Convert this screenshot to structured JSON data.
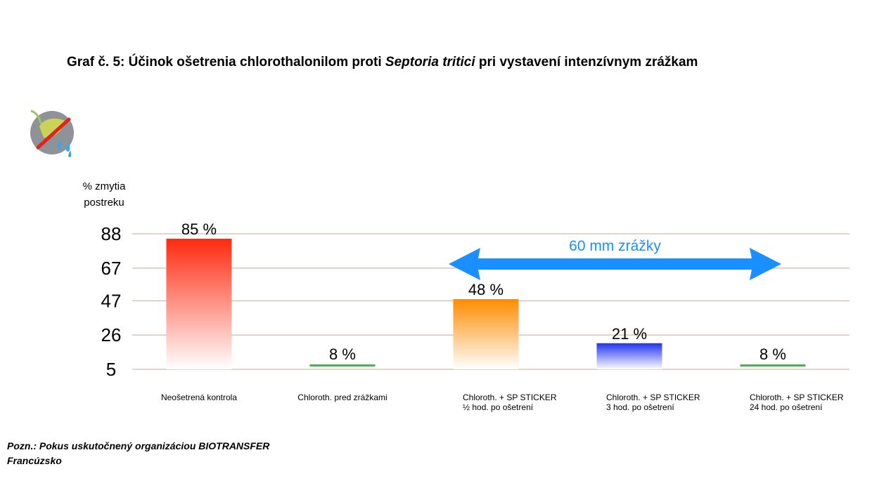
{
  "title": {
    "part1": "Graf č. 5: Účinok ošetrenia chlorothalonilom proti ",
    "italic": "Septoria tritici",
    "part2": " pri vystavení intenzívnym zrážkam"
  },
  "logo_icon": "rain-washing-leaf-icon",
  "note": {
    "line1": "Pozn.: Pokus uskutočnený organizáciou BIOTRANSFER",
    "line2": "Francúzsko"
  },
  "chart_data": {
    "type": "bar",
    "ylabel": [
      "% zmytia",
      "postreku"
    ],
    "yticks": [
      88,
      67,
      47,
      26,
      5
    ],
    "ylim": [
      5,
      88
    ],
    "grid": true,
    "categories": [
      [
        "Neošetrená kontrola"
      ],
      [
        "Chloroth. pred zrážkami"
      ],
      [
        "Chloroth. + SP STICKER",
        "½ hod. po ošetrení"
      ],
      [
        "Chloroth. + SP STICKER",
        "3 hod. po ošetrení"
      ],
      [
        "Chloroth. + SP STICKER",
        "24 hod. po ošetrení"
      ]
    ],
    "values": [
      85,
      8,
      48,
      21,
      8
    ],
    "value_labels": [
      "85 %",
      "8 %",
      "48 %",
      "21 %",
      "8 %"
    ],
    "colors": [
      "#ff2a10",
      "#4caf50",
      "#ff8c00",
      "#2233ee",
      "#4caf50"
    ],
    "annotation": {
      "text": "60 mm zrážky",
      "color": "#1a8fff",
      "spans": "categories 3–5"
    }
  }
}
